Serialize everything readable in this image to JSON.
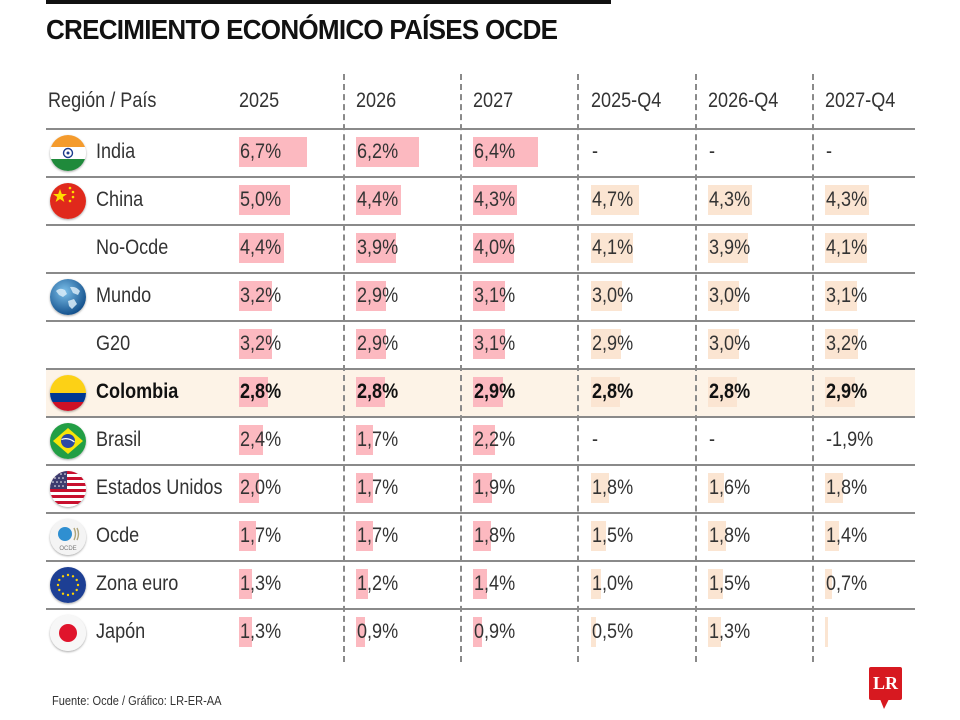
{
  "title": "CRECIMIENTO ECONÓMICO PAÍSES OCDE",
  "footer": "Fuente: Ocde / Gráfico: LR-ER-AA",
  "logo_text": "LR",
  "colors": {
    "annual_bar": "#fcb9c0",
    "q4_bar": "#fbe5d2",
    "highlight_row": "#fdf3e7",
    "logo": "#d71920"
  },
  "chart_data": {
    "type": "table",
    "title": "CRECIMIENTO ECONÓMICO PAÍSES OCDE",
    "columns": [
      "Región / País",
      "2025",
      "2026",
      "2027",
      "2025-Q4",
      "2026-Q4",
      "2027-Q4"
    ],
    "unit": "%",
    "rows": [
      {
        "name": "India",
        "icon": "india-flag-icon",
        "highlight": false,
        "values": [
          6.7,
          6.2,
          6.4,
          null,
          null,
          null
        ],
        "labels": [
          "6,7%",
          "6,2%",
          "6,4%",
          "-",
          "-",
          "-"
        ]
      },
      {
        "name": "China",
        "icon": "china-flag-icon",
        "highlight": false,
        "values": [
          5.0,
          4.4,
          4.3,
          4.7,
          4.3,
          4.3
        ],
        "labels": [
          "5,0%",
          "4,4%",
          "4,3%",
          "4,7%",
          "4,3%",
          "4,3%"
        ]
      },
      {
        "name": "No-Ocde",
        "icon": "",
        "highlight": false,
        "values": [
          4.4,
          3.9,
          4.0,
          4.1,
          3.9,
          4.1
        ],
        "labels": [
          "4,4%",
          "3,9%",
          "4,0%",
          "4,1%",
          "3,9%",
          "4,1%"
        ]
      },
      {
        "name": "Mundo",
        "icon": "globe-icon",
        "highlight": false,
        "values": [
          3.2,
          2.9,
          3.1,
          3.0,
          3.0,
          3.1
        ],
        "labels": [
          "3,2%",
          "2,9%",
          "3,1%",
          "3,0%",
          "3,0%",
          "3,1%"
        ]
      },
      {
        "name": "G20",
        "icon": "",
        "highlight": false,
        "values": [
          3.2,
          2.9,
          3.1,
          2.9,
          3.0,
          3.2
        ],
        "labels": [
          "3,2%",
          "2,9%",
          "3,1%",
          "2,9%",
          "3,0%",
          "3,2%"
        ]
      },
      {
        "name": "Colombia",
        "icon": "colombia-flag-icon",
        "highlight": true,
        "values": [
          2.8,
          2.8,
          2.9,
          2.8,
          2.8,
          2.9
        ],
        "labels": [
          "2,8%",
          "2,8%",
          "2,9%",
          "2,8%",
          "2,8%",
          "2,9%"
        ]
      },
      {
        "name": "Brasil",
        "icon": "brazil-flag-icon",
        "highlight": false,
        "values": [
          2.4,
          1.7,
          2.2,
          null,
          null,
          -1.9
        ],
        "labels": [
          "2,4%",
          "1,7%",
          "2,2%",
          "-",
          "-",
          "-1,9%"
        ]
      },
      {
        "name": "Estados Unidos",
        "icon": "usa-flag-icon",
        "highlight": false,
        "values": [
          2.0,
          1.7,
          1.9,
          1.8,
          1.6,
          1.8
        ],
        "labels": [
          "2,0%",
          "1,7%",
          "1,9%",
          "1,8%",
          "1,6%",
          "1,8%"
        ]
      },
      {
        "name": "Ocde",
        "icon": "ocde-logo-icon",
        "highlight": false,
        "values": [
          1.7,
          1.7,
          1.8,
          1.5,
          1.8,
          1.4
        ],
        "labels": [
          "1,7%",
          "1,7%",
          "1,8%",
          "1,5%",
          "1,8%",
          "1,4%"
        ]
      },
      {
        "name": "Zona euro",
        "icon": "eu-flag-icon",
        "highlight": false,
        "values": [
          1.3,
          1.2,
          1.4,
          1.0,
          1.5,
          0.7
        ],
        "labels": [
          "1,3%",
          "1,2%",
          "1,4%",
          "1,0%",
          "1,5%",
          "0,7%"
        ]
      },
      {
        "name": "Japón",
        "icon": "japan-flag-icon",
        "highlight": false,
        "values": [
          1.3,
          0.9,
          0.9,
          0.5,
          1.3,
          0.3
        ],
        "labels": [
          "1,3%",
          "0,9%",
          "0,9%",
          "0,5%",
          "1,3%",
          ""
        ]
      }
    ]
  }
}
